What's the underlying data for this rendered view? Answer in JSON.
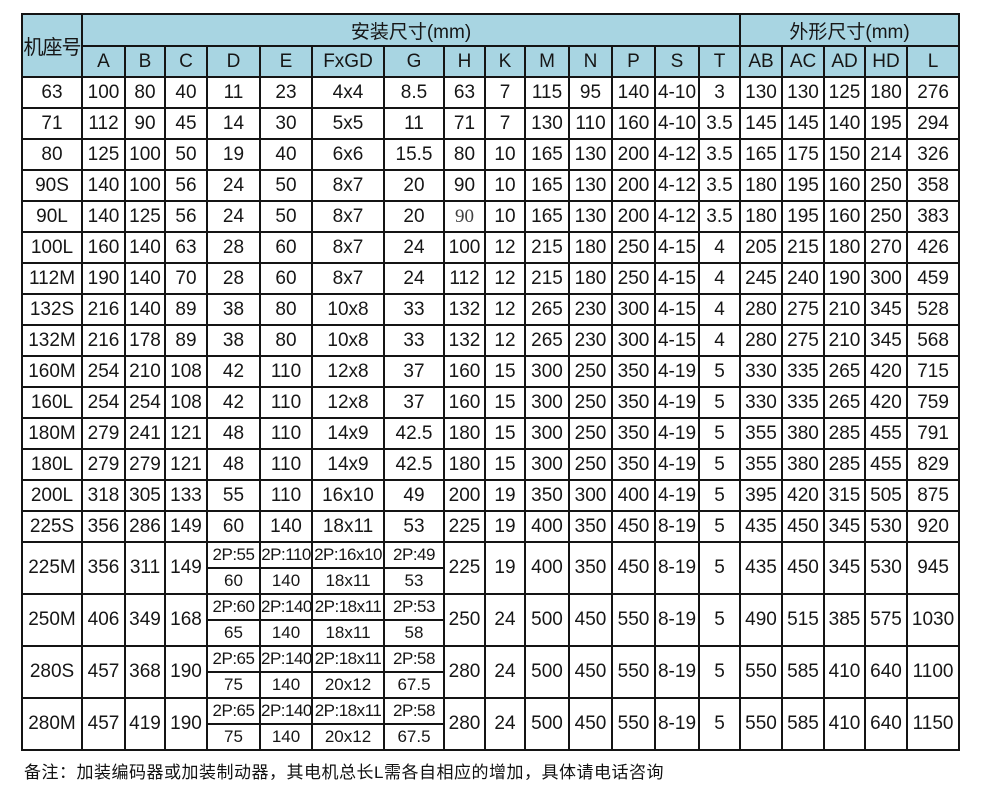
{
  "table": {
    "corner_header": "机座号",
    "sections": {
      "mounting": "安装尺寸(mm)",
      "overall": "外形尺寸(mm)"
    },
    "columns": [
      "A",
      "B",
      "C",
      "D",
      "E",
      "FxGD",
      "G",
      "H",
      "K",
      "M",
      "N",
      "P",
      "S",
      "T",
      "AB",
      "AC",
      "AD",
      "HD",
      "L"
    ],
    "rows": [
      {
        "frame": "63",
        "cells": [
          "100",
          "80",
          "40",
          "11",
          "23",
          "4x4",
          "8.5",
          "63",
          "7",
          "115",
          "95",
          "140",
          "4-10",
          "3",
          "130",
          "130",
          "125",
          "180",
          "276"
        ]
      },
      {
        "frame": "71",
        "cells": [
          "112",
          "90",
          "45",
          "14",
          "30",
          "5x5",
          "11",
          "71",
          "7",
          "130",
          "110",
          "160",
          "4-10",
          "3.5",
          "145",
          "145",
          "140",
          "195",
          "294"
        ]
      },
      {
        "frame": "80",
        "cells": [
          "125",
          "100",
          "50",
          "19",
          "40",
          "6x6",
          "15.5",
          "80",
          "10",
          "165",
          "130",
          "200",
          "4-12",
          "3.5",
          "165",
          "175",
          "150",
          "214",
          "326"
        ]
      },
      {
        "frame": "90S",
        "cells": [
          "140",
          "100",
          "56",
          "24",
          "50",
          "8x7",
          "20",
          "90",
          "10",
          "165",
          "130",
          "200",
          "4-12",
          "3.5",
          "180",
          "195",
          "160",
          "250",
          "358"
        ]
      },
      {
        "frame": "90L",
        "cells": [
          "140",
          "125",
          "56",
          "24",
          "50",
          "8x7",
          "20",
          {
            "v": "90",
            "serif": true
          },
          "10",
          "165",
          "130",
          "200",
          "4-12",
          "3.5",
          "180",
          "195",
          "160",
          "250",
          "383"
        ]
      },
      {
        "frame": "100L",
        "cells": [
          "160",
          "140",
          "63",
          "28",
          "60",
          "8x7",
          "24",
          "100",
          "12",
          "215",
          "180",
          "250",
          "4-15",
          "4",
          "205",
          "215",
          "180",
          "270",
          "426"
        ]
      },
      {
        "frame": "112M",
        "cells": [
          "190",
          "140",
          "70",
          "28",
          "60",
          "8x7",
          "24",
          "112",
          "12",
          "215",
          "180",
          "250",
          "4-15",
          "4",
          "245",
          "240",
          "190",
          "300",
          "459"
        ]
      },
      {
        "frame": "132S",
        "cells": [
          "216",
          "140",
          "89",
          "38",
          "80",
          "10x8",
          "33",
          "132",
          "12",
          "265",
          "230",
          "300",
          "4-15",
          "4",
          "280",
          "275",
          "210",
          "345",
          "528"
        ]
      },
      {
        "frame": "132M",
        "cells": [
          "216",
          "178",
          "89",
          "38",
          "80",
          "10x8",
          "33",
          "132",
          "12",
          "265",
          "230",
          "300",
          "4-15",
          "4",
          "280",
          "275",
          "210",
          "345",
          "568"
        ]
      },
      {
        "frame": "160M",
        "cells": [
          "254",
          "210",
          "108",
          "42",
          "110",
          "12x8",
          "37",
          "160",
          "15",
          "300",
          "250",
          "350",
          "4-19",
          "5",
          "330",
          "335",
          "265",
          "420",
          "715"
        ]
      },
      {
        "frame": "160L",
        "cells": [
          "254",
          "254",
          "108",
          "42",
          "110",
          "12x8",
          "37",
          "160",
          "15",
          "300",
          "250",
          "350",
          "4-19",
          "5",
          "330",
          "335",
          "265",
          "420",
          "759"
        ]
      },
      {
        "frame": "180M",
        "cells": [
          "279",
          "241",
          "121",
          "48",
          "110",
          "14x9",
          "42.5",
          "180",
          "15",
          "300",
          "250",
          "350",
          "4-19",
          "5",
          "355",
          "380",
          "285",
          "455",
          "791"
        ]
      },
      {
        "frame": "180L",
        "cells": [
          "279",
          "279",
          "121",
          "48",
          "110",
          "14x9",
          "42.5",
          "180",
          "15",
          "300",
          "250",
          "350",
          "4-19",
          "5",
          "355",
          "380",
          "285",
          "455",
          "829"
        ]
      },
      {
        "frame": "200L",
        "cells": [
          "318",
          "305",
          "133",
          "55",
          "110",
          "16x10",
          "49",
          "200",
          "19",
          "350",
          "300",
          "400",
          "4-19",
          "5",
          "395",
          "420",
          "315",
          "505",
          "875"
        ]
      },
      {
        "frame": "225S",
        "cells": [
          "356",
          "286",
          "149",
          "60",
          "140",
          "18x11",
          "53",
          "225",
          "19",
          "400",
          "350",
          "450",
          "8-19",
          "5",
          "435",
          "450",
          "345",
          "530",
          "920"
        ]
      },
      {
        "frame": "225M",
        "cells": [
          "356",
          "311",
          "149",
          {
            "top": "2P:55",
            "bottom": "60"
          },
          {
            "top": "2P:110",
            "bottom": "140"
          },
          {
            "top": "2P:16x10",
            "bottom": "18x11"
          },
          {
            "top": "2P:49",
            "bottom": "53"
          },
          "225",
          "19",
          "400",
          "350",
          "450",
          "8-19",
          "5",
          "435",
          "450",
          "345",
          "530",
          "945"
        ]
      },
      {
        "frame": "250M",
        "cells": [
          "406",
          "349",
          "168",
          {
            "top": "2P:60",
            "bottom": "65"
          },
          {
            "top": "2P:140",
            "bottom": "140"
          },
          {
            "top": "2P:18x11",
            "bottom": "18x11"
          },
          {
            "top": "2P:53",
            "bottom": "58"
          },
          "250",
          "24",
          "500",
          "450",
          "550",
          "8-19",
          "5",
          "490",
          "515",
          "385",
          "575",
          "1030"
        ]
      },
      {
        "frame": "280S",
        "cells": [
          "457",
          "368",
          "190",
          {
            "top": "2P:65",
            "bottom": "75"
          },
          {
            "top": "2P:140",
            "bottom": "140"
          },
          {
            "top": "2P:18x11",
            "bottom": "20x12"
          },
          {
            "top": "2P:58",
            "bottom": "67.5"
          },
          "280",
          "24",
          "500",
          "450",
          "550",
          "8-19",
          "5",
          "550",
          "585",
          "410",
          "640",
          "1100"
        ]
      },
      {
        "frame": "280M",
        "cells": [
          "457",
          "419",
          "190",
          {
            "top": "2P:65",
            "bottom": "75"
          },
          {
            "top": "2P:140",
            "bottom": "140"
          },
          {
            "top": "2P:18x11",
            "bottom": "20x12"
          },
          {
            "top": "2P:58",
            "bottom": "67.5"
          },
          "280",
          "24",
          "500",
          "450",
          "550",
          "8-19",
          "5",
          "550",
          "585",
          "410",
          "640",
          "1150"
        ]
      }
    ]
  },
  "note": "备注：加装编码器或加装制动器，其电机总长L需各自相应的增加，具体请电话咨询",
  "colors": {
    "header_bg": "#a8d5e2",
    "border": "#141414",
    "background": "#ffffff"
  }
}
